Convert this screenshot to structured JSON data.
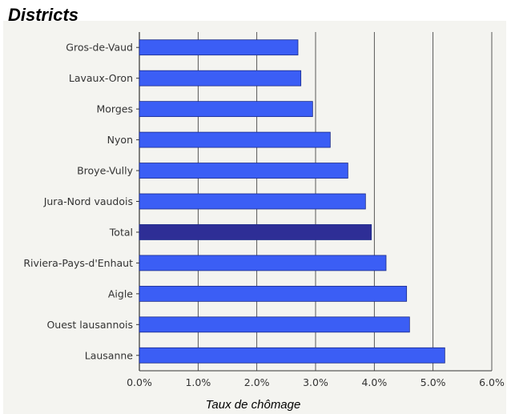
{
  "chart_data": {
    "type": "bar",
    "orientation": "horizontal",
    "title": "Districts",
    "xlabel": "Taux de chômage",
    "ylabel": "",
    "categories": [
      "Gros-de-Vaud",
      "Lavaux-Oron",
      "Morges",
      "Nyon",
      "Broye-Vully",
      "Jura-Nord vaudois",
      "Total",
      "Riviera-Pays-d'Enhaut",
      "Aigle",
      "Ouest lausannois",
      "Lausanne"
    ],
    "values": [
      2.7,
      2.75,
      2.95,
      3.25,
      3.55,
      3.85,
      3.95,
      4.2,
      4.55,
      4.6,
      5.2
    ],
    "xlim": [
      0,
      6
    ],
    "xticks": [
      0,
      1,
      2,
      3,
      4,
      5,
      6
    ],
    "xtick_labels": [
      "0.0%",
      "1.0%",
      "2.0%",
      "3.0%",
      "4.0%",
      "5.0%",
      "6.0%"
    ],
    "highlight_category": "Total",
    "grid": "vertical",
    "colors": {
      "bar": "#3b5ef5",
      "bar_highlight": "#2e2e96",
      "bar_stroke": "#1a2a8a",
      "grid": "#333333",
      "plot_bg": "#f4f4f0"
    }
  }
}
